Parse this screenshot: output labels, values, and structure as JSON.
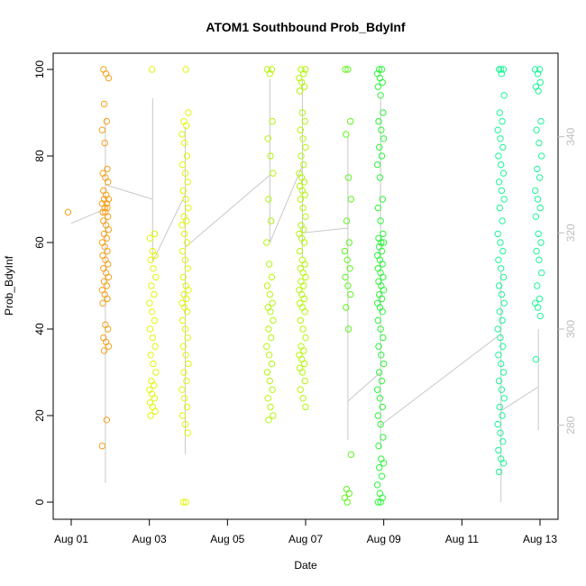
{
  "chart_data": {
    "type": "scatter",
    "title": "ATOM1 Southbound Prob_BdyInf",
    "xlabel": "Date",
    "ylabel": "Prob_BdyInf",
    "xlim": [
      "2024-08-01",
      "2024-08-13"
    ],
    "ylim": [
      0,
      100
    ],
    "x_ticks": [
      "Aug 01",
      "Aug 03",
      "Aug 05",
      "Aug 07",
      "Aug 09",
      "Aug 11",
      "Aug 13"
    ],
    "y_ticks": [
      "0",
      "20",
      "40",
      "60",
      "80",
      "100"
    ],
    "y2_ticks": [
      "280",
      "300",
      "320",
      "340"
    ],
    "y2lim": [
      264,
      354
    ],
    "grid": false,
    "legend": "none",
    "point_colors": [
      "#f5a21d",
      "#e2f50b",
      "#b6f50f",
      "#5ff51f",
      "#2ef53d",
      "#1ff599"
    ],
    "line_color": "#c8c8c8",
    "clusters": [
      {
        "date": "2024-08-01",
        "color": "#f5a21d",
        "values": [
          67
        ]
      },
      {
        "date": "2024-08-01T21:00",
        "color": "#f5a21d",
        "values": [
          100,
          99,
          98,
          92,
          88,
          86,
          83,
          77,
          76,
          75,
          74,
          72,
          71,
          70,
          70,
          69,
          69,
          68,
          68,
          67,
          67,
          66,
          65,
          64,
          63,
          62,
          61,
          60,
          59,
          58,
          57,
          56,
          55,
          54,
          53,
          52,
          51,
          50,
          49,
          48,
          47,
          46,
          41,
          40,
          38,
          37,
          36,
          35,
          19,
          13
        ]
      },
      {
        "date": "2024-08-03T02:00",
        "color": "#e2f50b",
        "values": [
          100,
          62,
          61,
          58,
          57,
          56,
          54,
          52,
          50,
          48,
          46,
          44,
          42,
          40,
          38,
          36,
          34,
          32,
          30,
          28,
          27,
          26,
          25,
          24,
          23,
          22,
          21,
          20
        ]
      },
      {
        "date": "2024-08-03T22:00",
        "color": "#e2f50b",
        "values": [
          100,
          90,
          88,
          87,
          85,
          83,
          80,
          78,
          76,
          74,
          72,
          70,
          68,
          66,
          65,
          64,
          62,
          60,
          58,
          56,
          54,
          52,
          50,
          49,
          48,
          47,
          46,
          45,
          44,
          42,
          40,
          38,
          36,
          34,
          32,
          30,
          28,
          26,
          24,
          22,
          20,
          18,
          16,
          0,
          0
        ]
      },
      {
        "date": "2024-08-06T02:00",
        "color": "#b6f50f",
        "values": [
          100,
          100,
          99,
          88,
          84,
          80,
          76,
          70,
          65,
          60,
          55,
          52,
          50,
          48,
          46,
          45,
          44,
          42,
          40,
          38,
          36,
          34,
          32,
          30,
          28,
          26,
          24,
          22,
          20,
          19
        ]
      },
      {
        "date": "2024-08-06T22:00",
        "color": "#b6f50f",
        "values": [
          100,
          100,
          99,
          98,
          97,
          96,
          95,
          90,
          88,
          86,
          84,
          82,
          80,
          78,
          76,
          75,
          74,
          73,
          72,
          71,
          70,
          68,
          66,
          64,
          63,
          62,
          61,
          60,
          58,
          56,
          55,
          54,
          53,
          52,
          51,
          50,
          49,
          48,
          47,
          46,
          45,
          44,
          42,
          40,
          38,
          36,
          35,
          34,
          33,
          32,
          31,
          30,
          28,
          26,
          24,
          22
        ]
      },
      {
        "date": "2024-08-08T02:00",
        "color": "#5ff51f",
        "values": [
          100,
          100,
          88,
          85,
          75,
          70,
          65,
          60,
          58,
          56,
          54,
          52,
          50,
          48,
          45,
          40,
          11,
          3,
          2,
          1,
          0
        ]
      },
      {
        "date": "2024-08-08T22:00",
        "color": "#2ef53d",
        "values": [
          100,
          100,
          99,
          98,
          97,
          96,
          94,
          90,
          88,
          86,
          84,
          82,
          80,
          78,
          75,
          70,
          68,
          65,
          62,
          61,
          60,
          60,
          59,
          58,
          57,
          56,
          55,
          54,
          53,
          52,
          51,
          50,
          49,
          48,
          47,
          46,
          45,
          44,
          42,
          40,
          38,
          36,
          34,
          32,
          30,
          28,
          26,
          24,
          22,
          20,
          18,
          15,
          13,
          10,
          9,
          8,
          6,
          4,
          2,
          1,
          0,
          0
        ]
      },
      {
        "date": "2024-08-12T00:00",
        "color": "#1ff599",
        "values": [
          100,
          100,
          100,
          99,
          94,
          90,
          88,
          86,
          84,
          82,
          80,
          78,
          76,
          74,
          72,
          70,
          68,
          65,
          62,
          60,
          58,
          56,
          54,
          52,
          50,
          48,
          46,
          44,
          42,
          40,
          38,
          36,
          34,
          32,
          30,
          28,
          26,
          24,
          22,
          20,
          18,
          16,
          14,
          12,
          10,
          9,
          7
        ]
      },
      {
        "date": "2024-08-12T23:00",
        "color": "#1ff599",
        "values": [
          100,
          100,
          99,
          97,
          96,
          95,
          88,
          86,
          83,
          80,
          77,
          75,
          72,
          70,
          68,
          66,
          62,
          60,
          58,
          56,
          53,
          50,
          47,
          46,
          45,
          43,
          33
        ]
      }
    ],
    "line_series": {
      "name": "",
      "axis": "right",
      "points": [
        [
          "2024-08-01",
          322
        ],
        [
          "2024-08-01T21:00",
          325
        ],
        [
          "2024-08-01T21:00",
          344
        ],
        [
          "2024-08-01T21:00",
          268
        ],
        [
          "2024-08-01T21:00",
          330
        ],
        [
          "2024-08-03T02:00",
          327
        ],
        [
          "2024-08-03T02:00",
          348
        ],
        [
          "2024-08-03T02:00",
          314
        ],
        [
          "2024-08-03T22:00",
          328
        ],
        [
          "2024-08-03T22:00",
          342
        ],
        [
          "2024-08-03T22:00",
          274
        ],
        [
          "2024-08-03T22:00",
          317
        ],
        [
          "2024-08-06T02:00",
          332
        ],
        [
          "2024-08-06T02:00",
          352
        ],
        [
          "2024-08-06T02:00",
          318
        ],
        [
          "2024-08-06T22:00",
          334
        ],
        [
          "2024-08-06T22:00",
          352
        ],
        [
          "2024-08-06T22:00",
          315
        ],
        [
          "2024-08-06T22:00",
          320
        ],
        [
          "2024-08-08T02:00",
          321
        ],
        [
          "2024-08-08T02:00",
          340
        ],
        [
          "2024-08-08T02:00",
          277
        ],
        [
          "2024-08-08T02:00",
          285
        ],
        [
          "2024-08-08T22:00",
          291
        ],
        [
          "2024-08-08T22:00",
          348
        ],
        [
          "2024-08-08T22:00",
          275
        ],
        [
          "2024-08-08T22:00",
          280
        ],
        [
          "2024-08-12T00:00",
          299
        ],
        [
          "2024-08-12T00:00",
          312
        ],
        [
          "2024-08-12T00:00",
          264
        ],
        [
          "2024-08-12T00:00",
          283
        ],
        [
          "2024-08-12T23:00",
          288
        ],
        [
          "2024-08-12T23:00",
          300
        ],
        [
          "2024-08-12T23:00",
          279
        ]
      ]
    }
  }
}
